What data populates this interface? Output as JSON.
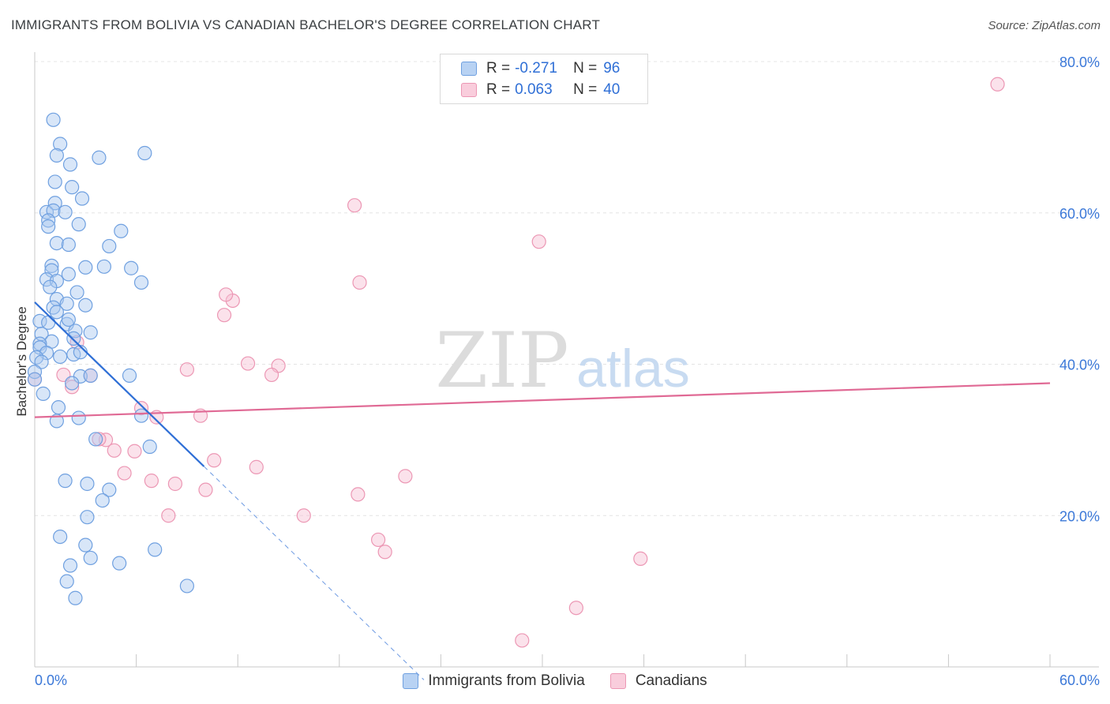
{
  "header": {
    "title": "IMMIGRANTS FROM BOLIVIA VS CANADIAN BACHELOR'S DEGREE CORRELATION CHART",
    "source": "Source: ZipAtlas.com"
  },
  "watermark": {
    "part1": "ZIP",
    "part2": "atlas"
  },
  "legend": {
    "r_label": "R = ",
    "n_label": "N = ",
    "series": [
      {
        "r": "-0.271",
        "n": "96"
      },
      {
        "r": "0.063",
        "n": "40"
      }
    ]
  },
  "bottom_legend": [
    "Immigrants from Bolivia",
    "Canadians"
  ],
  "colors": {
    "blue_fill": "#a9c8f0",
    "blue_stroke": "#6fa0e0",
    "blue_line": "#2f6fd6",
    "pink_fill": "#f7bfd2",
    "pink_stroke": "#ec97b4",
    "pink_line": "#e06a95"
  },
  "chart_data": {
    "type": "scatter",
    "title": "IMMIGRANTS FROM BOLIVIA VS CANADIAN BACHELOR'S DEGREE CORRELATION CHART",
    "xlabel": "",
    "ylabel": "Bachelor's Degree",
    "xlim": [
      0,
      60
    ],
    "ylim": [
      0,
      80
    ],
    "x_tick_labels": [
      "0.0%",
      "60.0%"
    ],
    "y_ticks": [
      20,
      40,
      60,
      80
    ],
    "y_tick_labels": [
      "20.0%",
      "40.0%",
      "60.0%",
      "80.0%"
    ],
    "grid": true,
    "legend_position": "top-center",
    "series": [
      {
        "name": "Immigrants from Bolivia",
        "r": -0.271,
        "n": 96,
        "trend": {
          "x0": 0,
          "y0": 48.2,
          "x1": 10,
          "y1": 26.5,
          "dash_to_x": 23
        },
        "points": [
          [
            1.1,
            72.3
          ],
          [
            1.5,
            69.1
          ],
          [
            1.3,
            67.6
          ],
          [
            2.1,
            66.4
          ],
          [
            3.8,
            67.3
          ],
          [
            6.5,
            67.9
          ],
          [
            1.2,
            64.1
          ],
          [
            2.2,
            63.4
          ],
          [
            2.8,
            61.9
          ],
          [
            1.2,
            61.3
          ],
          [
            0.7,
            60.1
          ],
          [
            1.1,
            60.3
          ],
          [
            1.8,
            60.1
          ],
          [
            0.8,
            59.0
          ],
          [
            0.8,
            58.2
          ],
          [
            2.6,
            58.5
          ],
          [
            5.1,
            57.6
          ],
          [
            1.3,
            56.0
          ],
          [
            2.0,
            55.8
          ],
          [
            4.4,
            55.6
          ],
          [
            1.0,
            53.0
          ],
          [
            3.0,
            52.8
          ],
          [
            4.1,
            52.9
          ],
          [
            5.7,
            52.7
          ],
          [
            1.0,
            52.4
          ],
          [
            2.0,
            51.9
          ],
          [
            0.7,
            51.2
          ],
          [
            1.3,
            51.0
          ],
          [
            0.9,
            50.2
          ],
          [
            2.5,
            49.5
          ],
          [
            6.3,
            50.8
          ],
          [
            1.3,
            48.6
          ],
          [
            1.9,
            48.0
          ],
          [
            3.0,
            47.8
          ],
          [
            1.1,
            47.5
          ],
          [
            1.3,
            46.9
          ],
          [
            0.3,
            45.7
          ],
          [
            0.8,
            45.5
          ],
          [
            1.9,
            45.3
          ],
          [
            2.0,
            45.9
          ],
          [
            3.3,
            44.2
          ],
          [
            0.4,
            44.0
          ],
          [
            2.4,
            44.4
          ],
          [
            2.3,
            43.4
          ],
          [
            1.0,
            43.0
          ],
          [
            0.3,
            42.7
          ],
          [
            0.3,
            42.2
          ],
          [
            0.7,
            41.5
          ],
          [
            1.5,
            41.0
          ],
          [
            2.3,
            41.3
          ],
          [
            2.7,
            41.6
          ],
          [
            0.1,
            40.9
          ],
          [
            0.4,
            40.3
          ],
          [
            0.0,
            39.0
          ],
          [
            0.0,
            38.0
          ],
          [
            2.7,
            38.4
          ],
          [
            3.3,
            38.5
          ],
          [
            5.6,
            38.5
          ],
          [
            2.2,
            37.5
          ],
          [
            0.5,
            36.1
          ],
          [
            1.4,
            34.3
          ],
          [
            1.3,
            32.5
          ],
          [
            2.6,
            32.9
          ],
          [
            6.3,
            33.2
          ],
          [
            3.6,
            30.1
          ],
          [
            6.8,
            29.1
          ],
          [
            1.8,
            24.6
          ],
          [
            3.1,
            24.2
          ],
          [
            4.4,
            23.4
          ],
          [
            4.0,
            22.0
          ],
          [
            3.1,
            19.8
          ],
          [
            1.5,
            17.2
          ],
          [
            3.0,
            16.1
          ],
          [
            7.1,
            15.5
          ],
          [
            3.3,
            14.4
          ],
          [
            2.1,
            13.4
          ],
          [
            5.0,
            13.7
          ],
          [
            1.9,
            11.3
          ],
          [
            9.0,
            10.7
          ],
          [
            2.4,
            9.1
          ]
        ]
      },
      {
        "name": "Canadians",
        "r": 0.063,
        "n": 40,
        "trend": {
          "x0": 0,
          "y0": 33.0,
          "x1": 60,
          "y1": 37.5
        },
        "points": [
          [
            56.9,
            77.0
          ],
          [
            18.9,
            61.0
          ],
          [
            29.8,
            56.2
          ],
          [
            19.2,
            50.8
          ],
          [
            11.7,
            48.4
          ],
          [
            11.3,
            49.2
          ],
          [
            11.2,
            46.5
          ],
          [
            2.5,
            42.9
          ],
          [
            0.0,
            38.0
          ],
          [
            12.6,
            40.1
          ],
          [
            9.0,
            39.3
          ],
          [
            14.4,
            39.8
          ],
          [
            14.0,
            38.6
          ],
          [
            1.7,
            38.6
          ],
          [
            3.3,
            38.5
          ],
          [
            2.2,
            37.0
          ],
          [
            6.3,
            34.2
          ],
          [
            7.2,
            33.0
          ],
          [
            9.8,
            33.2
          ],
          [
            4.2,
            30.0
          ],
          [
            3.8,
            30.1
          ],
          [
            4.7,
            28.6
          ],
          [
            5.9,
            28.5
          ],
          [
            10.6,
            27.3
          ],
          [
            5.3,
            25.6
          ],
          [
            13.1,
            26.4
          ],
          [
            21.9,
            25.2
          ],
          [
            6.9,
            24.6
          ],
          [
            8.3,
            24.2
          ],
          [
            10.1,
            23.4
          ],
          [
            19.1,
            22.8
          ],
          [
            7.9,
            20.0
          ],
          [
            15.9,
            20.0
          ],
          [
            20.3,
            16.8
          ],
          [
            20.7,
            15.2
          ],
          [
            35.8,
            14.3
          ],
          [
            32.0,
            7.8
          ],
          [
            28.8,
            3.5
          ]
        ]
      }
    ]
  }
}
